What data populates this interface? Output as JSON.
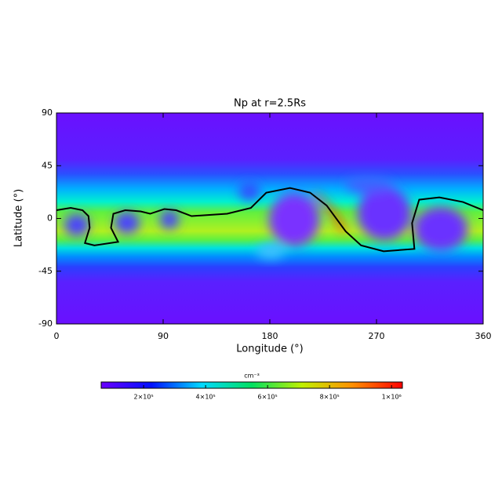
{
  "chart_data": {
    "type": "heatmap",
    "title": "Np at r=2.5Rs",
    "xlabel": "Longitude (°)",
    "ylabel": "Latitude (°)",
    "xlim": [
      0,
      360
    ],
    "xticks": [
      0,
      90,
      180,
      270,
      360
    ],
    "ylim": [
      -90,
      90
    ],
    "yticks": [
      -90,
      -45,
      0,
      45,
      90
    ],
    "series": [
      {
        "color": "#000000",
        "x": [
          0,
          12,
          22,
          27,
          28,
          24,
          32,
          52,
          46,
          48,
          58,
          71,
          79,
          91,
          101,
          114,
          144,
          164,
          177,
          197,
          214,
          228,
          244,
          257,
          276,
          302,
          300,
          306,
          323,
          343,
          360
        ],
        "values": [
          7,
          9,
          7,
          2,
          -8,
          -21,
          -23,
          -20,
          -8,
          4,
          7,
          6,
          4,
          8,
          7,
          2,
          4,
          9,
          22,
          26,
          22,
          11,
          -11,
          -23,
          -28,
          -26,
          -4,
          16,
          18,
          14,
          7
        ]
      }
    ],
    "colorbar": {
      "label": "cm⁻³",
      "lim": [
        63000,
        1035000
      ],
      "ticks": [
        {
          "value": 200000,
          "label": "2×10⁵"
        },
        {
          "value": 400000,
          "label": "4×10⁵"
        },
        {
          "value": 600000,
          "label": "6×10⁵"
        },
        {
          "value": 800000,
          "label": "8×10⁵"
        },
        {
          "value": 1000000,
          "label": "1×10⁶"
        }
      ],
      "colors": [
        "#6a00ff",
        "#0010ff",
        "#00d8ff",
        "#00e060",
        "#c0f000",
        "#ff9000",
        "#ff0000"
      ]
    }
  }
}
